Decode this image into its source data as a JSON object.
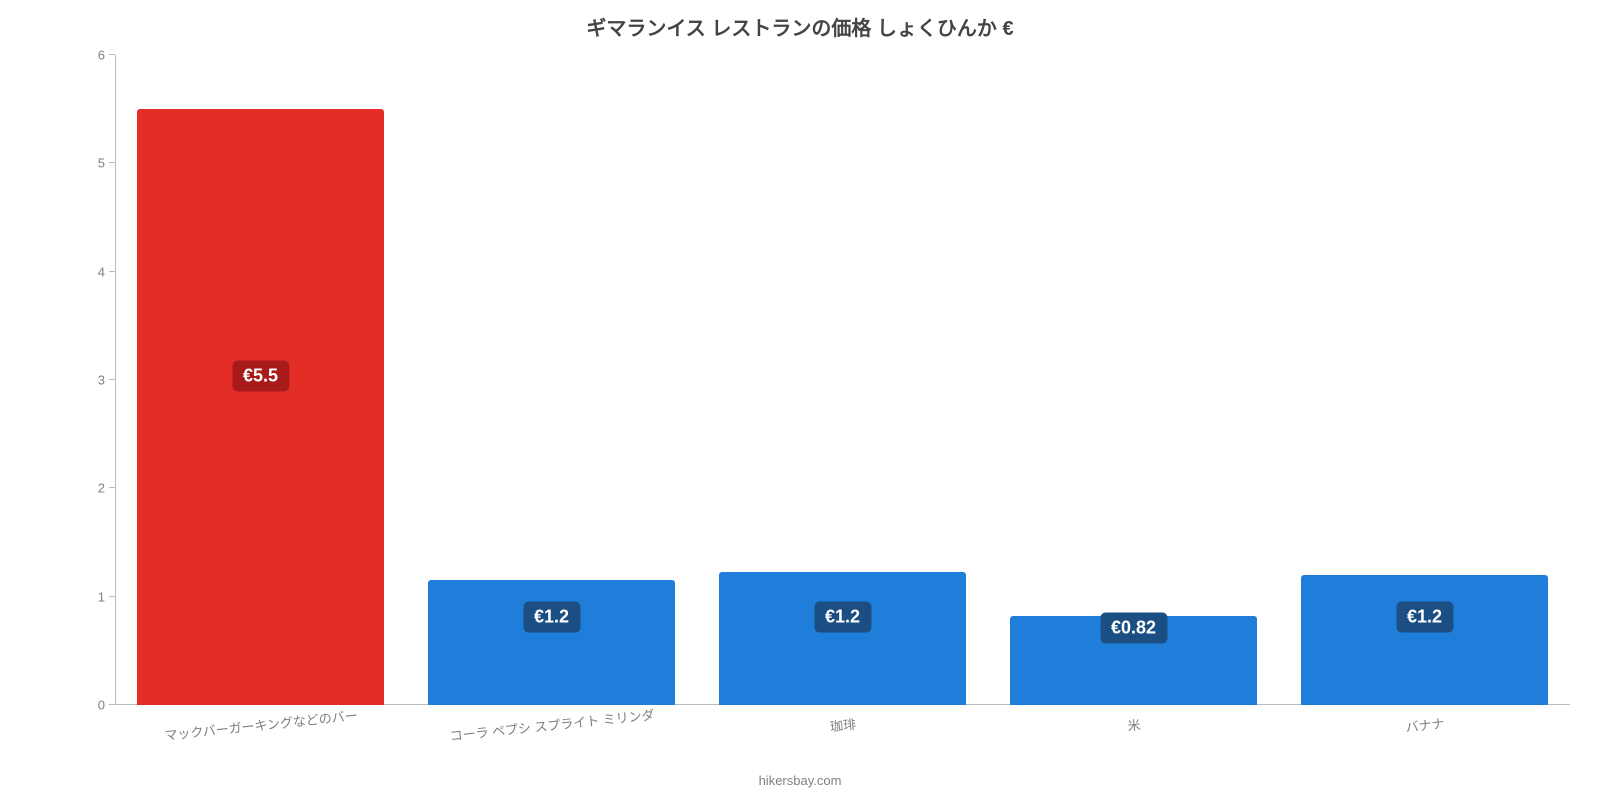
{
  "chart": {
    "type": "bar",
    "title": "ギマランイス レストランの価格 しょくひんか €",
    "title_fontsize": 20,
    "title_color": "#444444",
    "background_color": "#ffffff",
    "attribution": "hikersbay.com",
    "attribution_color": "#808080",
    "attribution_fontsize": 13,
    "axis_color": "#bbbbbb",
    "tick_label_color": "#808080",
    "tick_fontsize": 13,
    "ylim": [
      0,
      6
    ],
    "ytick_step": 1,
    "yticks": [
      0,
      1,
      2,
      3,
      4,
      5,
      6
    ],
    "categories": [
      "マックバーガーキングなどのバー",
      "コーラ ペプシ スプライト ミリンダ",
      "珈琲",
      "米",
      "バナナ"
    ],
    "xlabel_fontsize": 13,
    "xlabel_rotation_deg": -6,
    "values": [
      5.5,
      1.15,
      1.23,
      0.82,
      1.2
    ],
    "value_labels": [
      "€5.5",
      "€1.2",
      "€1.2",
      "€0.82",
      "€1.2"
    ],
    "value_label_fontsize": 18,
    "value_label_color": "#ffffff",
    "value_label_bg_colors": [
      "#a91b1b",
      "#1b4f84",
      "#1b4f84",
      "#1b4f84",
      "#1b4f84"
    ],
    "bar_colors": [
      "#e52d27",
      "#1f7ed9",
      "#1f7ed9",
      "#1f7ed9",
      "#1f7ed9"
    ],
    "bar_width_pct": 85,
    "label_y_values": [
      3.15,
      0.92,
      0.92,
      0.82,
      0.92
    ]
  }
}
